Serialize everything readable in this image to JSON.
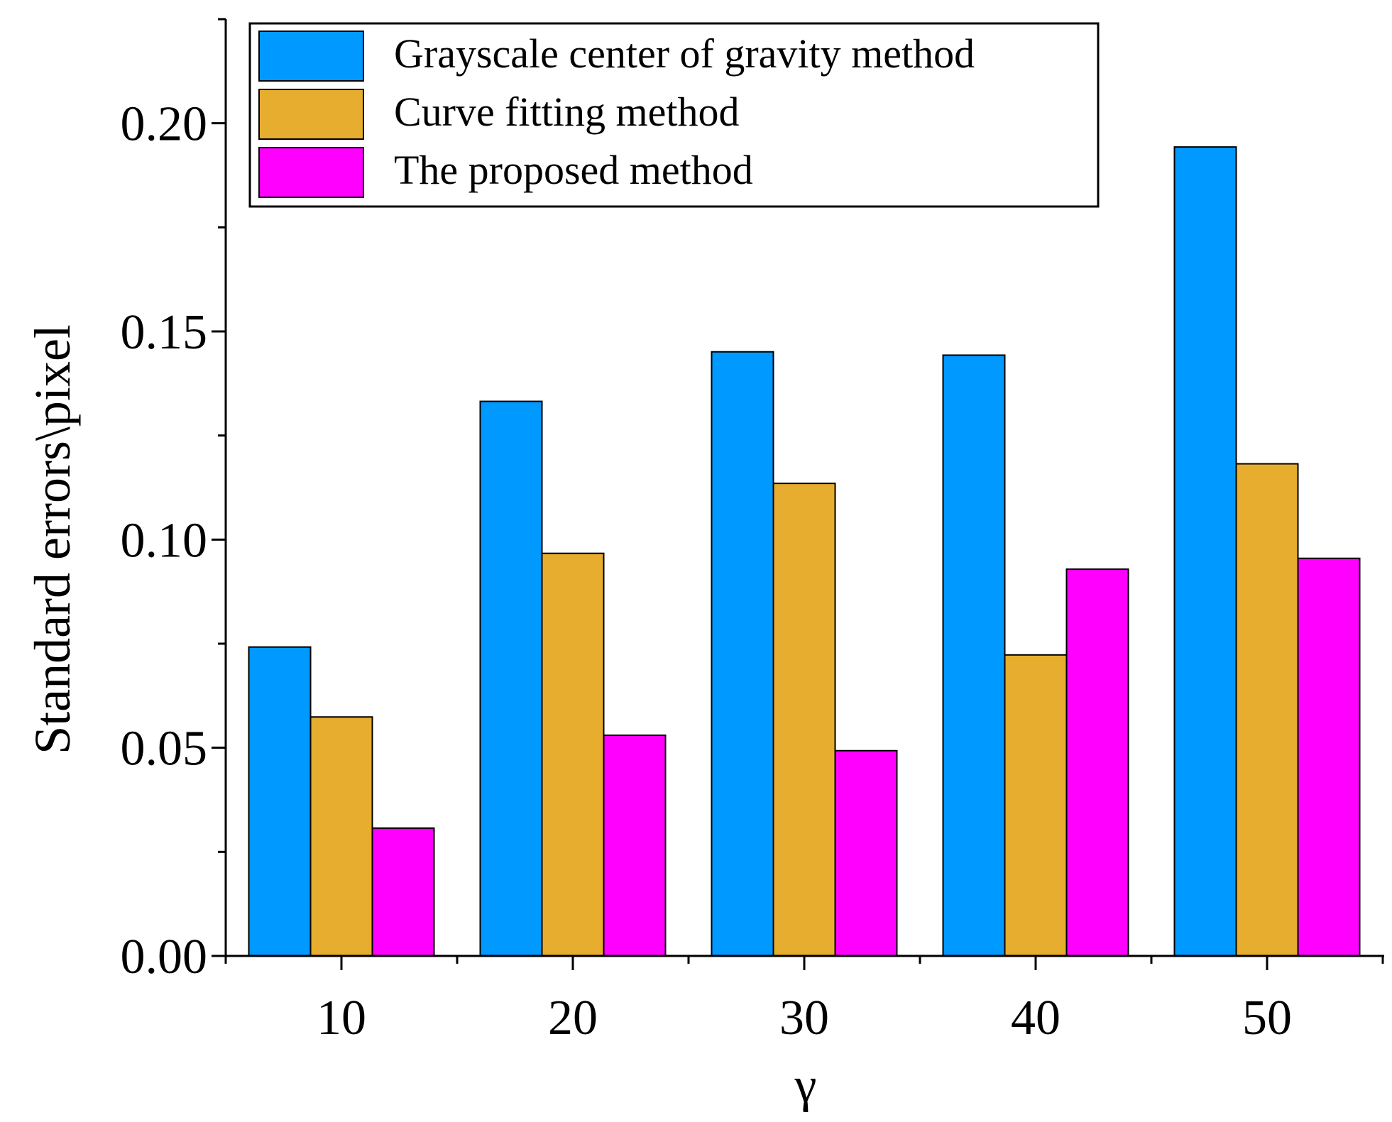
{
  "chart_data": {
    "type": "bar",
    "title": "",
    "xlabel": "γ",
    "ylabel": "Standard errors\\pixel",
    "categories": [
      "10",
      "20",
      "30",
      "40",
      "50"
    ],
    "x_ticks": [
      "10",
      "20",
      "30",
      "40",
      "50"
    ],
    "y_ticks": [
      "0.00",
      "0.05",
      "0.10",
      "0.15",
      "0.20"
    ],
    "ylim": [
      0,
      0.225
    ],
    "grid": false,
    "legend_position": "top-left",
    "series": [
      {
        "name": "Grayscale center of gravity method",
        "color": "#0099FF",
        "values": [
          0.0742,
          0.1332,
          0.1451,
          0.1443,
          0.1943
        ]
      },
      {
        "name": "Curve fitting method",
        "color": "#E6AD2E",
        "values": [
          0.0574,
          0.0967,
          0.1135,
          0.0723,
          0.1182
        ]
      },
      {
        "name": "The proposed method",
        "color": "#FF00FF",
        "values": [
          0.0307,
          0.053,
          0.0493,
          0.0929,
          0.0955
        ]
      }
    ]
  }
}
